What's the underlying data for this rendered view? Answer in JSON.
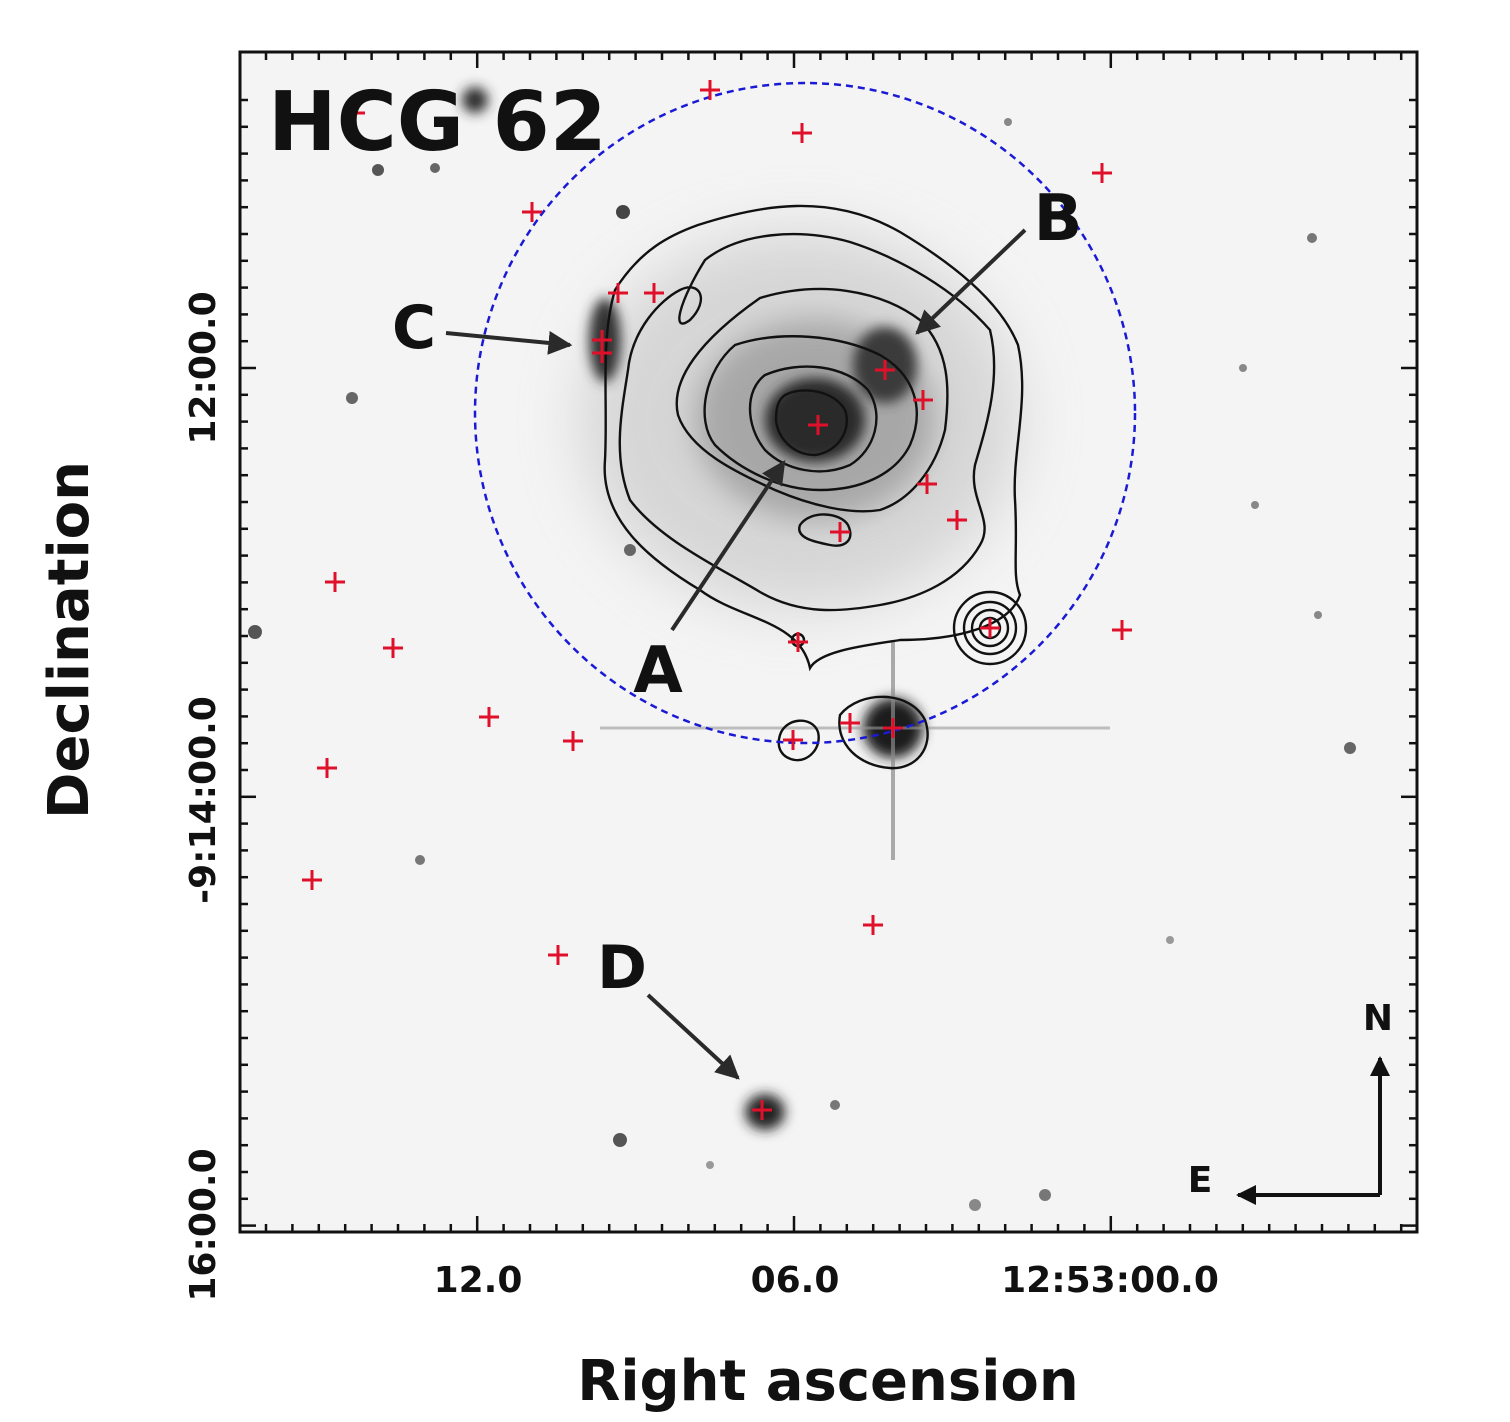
{
  "figure": {
    "title": "HCG 62",
    "xlabel": "Right ascension",
    "ylabel": "Declination",
    "x_ticks": [
      "12.0",
      "06.0",
      "12:53:00.0"
    ],
    "y_ticks": [
      "16:00.0",
      "-9:14:00.0",
      "12:00.0"
    ],
    "galaxy_labels": [
      "A",
      "B",
      "C",
      "D"
    ],
    "compass": {
      "north": "N",
      "east": "E"
    },
    "colors": {
      "source_markers": "#e0102a",
      "aperture_circle": "#1a1ad6",
      "contours": "#111111",
      "arrows": "#2a2a2a",
      "background": "#f4f4f4"
    }
  }
}
